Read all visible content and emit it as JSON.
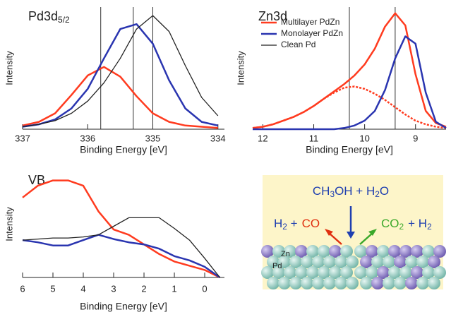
{
  "chart_data": [
    {
      "type": "line",
      "title": "Pd3d",
      "title_sub": "5/2",
      "xlabel": "Binding Energy [eV]",
      "ylabel": "Intensity",
      "x": [
        337,
        336.75,
        336.5,
        336.25,
        336,
        335.75,
        335.5,
        335.25,
        335,
        334.75,
        334.5,
        334.25,
        334
      ],
      "xlim": [
        337,
        333.9
      ],
      "xticks": [
        337,
        336,
        335,
        334
      ],
      "ylim": [
        0,
        1
      ],
      "series": [
        {
          "color": "#ff3b1f",
          "values": [
            0.03,
            0.06,
            0.13,
            0.28,
            0.44,
            0.51,
            0.43,
            0.27,
            0.13,
            0.06,
            0.03,
            0.02,
            0.01
          ]
        },
        {
          "color": "#2a35b0",
          "values": [
            0.02,
            0.04,
            0.08,
            0.17,
            0.33,
            0.58,
            0.82,
            0.86,
            0.7,
            0.4,
            0.17,
            0.06,
            0.03
          ]
        },
        {
          "color": "#222222",
          "values": [
            0.02,
            0.04,
            0.07,
            0.13,
            0.23,
            0.38,
            0.58,
            0.82,
            0.93,
            0.8,
            0.52,
            0.26,
            0.11
          ]
        }
      ],
      "peak_lines": [
        335.8,
        335.3,
        335.0
      ]
    },
    {
      "type": "line",
      "title": "Zn3d",
      "xlabel": "Binding Energy [eV]",
      "ylabel": "Intensity",
      "x": [
        12.2,
        12.0,
        11.8,
        11.6,
        11.4,
        11.2,
        11.0,
        10.8,
        10.6,
        10.4,
        10.2,
        10.0,
        9.8,
        9.6,
        9.4,
        9.2,
        9.0,
        8.8,
        8.6,
        8.4
      ],
      "xlim": [
        12.2,
        8.4
      ],
      "xticks": [
        12,
        11,
        10,
        9
      ],
      "ylim": [
        0,
        1
      ],
      "series": [
        {
          "color": "#ff3b1f",
          "values": [
            0.01,
            0.02,
            0.04,
            0.07,
            0.1,
            0.14,
            0.19,
            0.25,
            0.31,
            0.37,
            0.44,
            0.53,
            0.66,
            0.84,
            0.95,
            0.85,
            0.45,
            0.15,
            0.05,
            0.02
          ]
        },
        {
          "color": "#ff3b1f",
          "dash": true,
          "values": [
            0.01,
            0.02,
            0.04,
            0.07,
            0.1,
            0.14,
            0.19,
            0.25,
            0.3,
            0.34,
            0.35,
            0.33,
            0.29,
            0.24,
            0.18,
            0.12,
            0.07,
            0.04,
            0.02,
            0.01
          ]
        },
        {
          "color": "#2a35b0",
          "values": [
            0,
            0,
            0,
            0,
            0,
            0,
            0,
            0,
            0,
            0.01,
            0.03,
            0.07,
            0.15,
            0.32,
            0.58,
            0.76,
            0.7,
            0.3,
            0.06,
            0.01
          ]
        }
      ],
      "peak_lines": [
        10.3,
        9.4
      ],
      "legend": [
        {
          "name": "Multilayer PdZn",
          "color": "#ff3b1f"
        },
        {
          "name": "Monolayer PdZn",
          "color": "#2a35b0"
        },
        {
          "name": "Clean Pd",
          "color": "#222222"
        }
      ]
    },
    {
      "type": "line",
      "title": "VB",
      "xlabel": "Binding Energy [eV]",
      "ylabel": "Intensity",
      "x": [
        6,
        5.5,
        5,
        4.5,
        4,
        3.5,
        3,
        2.5,
        2,
        1.5,
        1,
        0.5,
        0,
        -0.5
      ],
      "xlim": [
        6,
        -0.65
      ],
      "xticks": [
        6,
        5,
        4,
        3,
        2,
        1,
        0
      ],
      "ylim": [
        0,
        1
      ],
      "series": [
        {
          "color": "#ff3b1f",
          "values": [
            0.75,
            0.86,
            0.91,
            0.91,
            0.86,
            0.62,
            0.45,
            0.4,
            0.31,
            0.22,
            0.15,
            0.11,
            0.07,
            0.0
          ]
        },
        {
          "color": "#2a35b0",
          "values": [
            0.35,
            0.33,
            0.3,
            0.3,
            0.35,
            0.4,
            0.36,
            0.33,
            0.31,
            0.27,
            0.2,
            0.16,
            0.1,
            0.0
          ]
        },
        {
          "color": "#222222",
          "values": [
            0.35,
            0.36,
            0.37,
            0.37,
            0.38,
            0.4,
            0.48,
            0.56,
            0.56,
            0.56,
            0.46,
            0.35,
            0.18,
            0.0
          ]
        }
      ]
    }
  ],
  "scheme": {
    "reactants": "CH3OH + H2O",
    "left_products": [
      {
        "text": "H2 +",
        "color": "#1f3fb0"
      },
      {
        "text": "CO",
        "color": "#e03010"
      }
    ],
    "right_products": [
      {
        "text": "CO2",
        "color": "#3aa82a"
      },
      {
        "text": "+ H2",
        "color": "#1f3fb0"
      }
    ],
    "labels": [
      "Zn",
      "Pd"
    ]
  }
}
